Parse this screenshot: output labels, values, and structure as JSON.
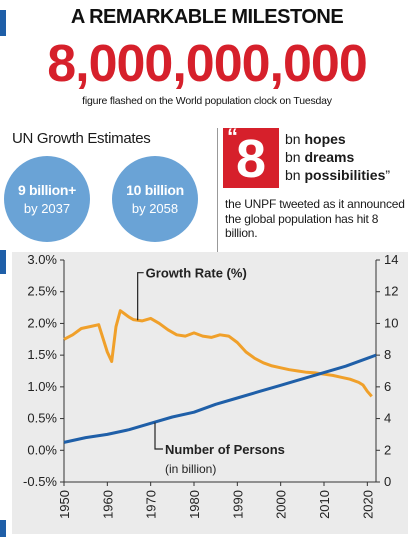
{
  "header": {
    "headline": "A REMARKABLE MILESTONE",
    "big_number": "8,000,000,000",
    "caption": "figure flashed on the World population clock on Tuesday"
  },
  "estimates": {
    "title": "UN Growth Estimates",
    "bubbles": [
      {
        "value": "9 billion+",
        "year": "by 2037"
      },
      {
        "value": "10 billion",
        "year": "by 2058"
      }
    ]
  },
  "tweet": {
    "open_quote": "“",
    "number": "8",
    "lines": [
      {
        "prefix": "bn ",
        "bold": "hopes",
        "suffix": ""
      },
      {
        "prefix": "bn ",
        "bold": "dreams",
        "suffix": ""
      },
      {
        "prefix": "bn ",
        "bold": "possibilities",
        "suffix": "”"
      }
    ],
    "body": "the UNPF tweeted as it announced the global population has hit 8 billion."
  },
  "colors": {
    "accent_red": "#d6202b",
    "bubble_blue": "#6aa3d6",
    "growth_line": "#f0a02a",
    "persons_line": "#1f5fa8",
    "chart_bg": "#ebebeb"
  },
  "chart_data": {
    "type": "line",
    "title": "",
    "xlabel": "",
    "x_ticks": [
      1950,
      1960,
      1970,
      1980,
      1990,
      2000,
      2010,
      2020
    ],
    "xlim": [
      1950,
      2022
    ],
    "y_left": {
      "ylim": [
        -0.5,
        3.0
      ],
      "ticks": [
        "3.0%",
        "2.5%",
        "2.0%",
        "1.5%",
        "1.0%",
        "0.5%",
        "0.0%",
        "-0.5%"
      ]
    },
    "y_right": {
      "ylim": [
        0,
        14
      ],
      "ticks": [
        "14",
        "12",
        "10",
        "8",
        "6",
        "4",
        "2",
        "0"
      ]
    },
    "grid": false,
    "annotations": {
      "growth": "Growth Rate (%)",
      "persons": "Number of Persons",
      "persons_unit": "(in billion)"
    },
    "series": [
      {
        "name": "Growth Rate (%)",
        "axis": "left",
        "x": [
          1950,
          1952,
          1954,
          1956,
          1958,
          1960,
          1961,
          1962,
          1963,
          1964,
          1965,
          1966,
          1968,
          1970,
          1972,
          1974,
          1976,
          1978,
          1980,
          1982,
          1984,
          1986,
          1988,
          1990,
          1992,
          1994,
          1996,
          1998,
          2000,
          2002,
          2004,
          2006,
          2008,
          2010,
          2012,
          2014,
          2016,
          2018,
          2019,
          2020,
          2021
        ],
        "y": [
          1.75,
          1.82,
          1.92,
          1.95,
          1.98,
          1.55,
          1.4,
          1.95,
          2.2,
          2.15,
          2.1,
          2.06,
          2.04,
          2.08,
          2.0,
          1.9,
          1.82,
          1.8,
          1.85,
          1.8,
          1.78,
          1.82,
          1.8,
          1.7,
          1.55,
          1.45,
          1.38,
          1.33,
          1.3,
          1.27,
          1.25,
          1.23,
          1.22,
          1.2,
          1.18,
          1.15,
          1.12,
          1.07,
          1.03,
          0.93,
          0.85
        ]
      },
      {
        "name": "Number of Persons",
        "axis": "right",
        "x": [
          1950,
          1955,
          1960,
          1965,
          1970,
          1975,
          1980,
          1985,
          1990,
          1995,
          2000,
          2005,
          2010,
          2015,
          2020,
          2022
        ],
        "y": [
          2.5,
          2.8,
          3.0,
          3.3,
          3.7,
          4.1,
          4.4,
          4.9,
          5.3,
          5.7,
          6.1,
          6.5,
          6.9,
          7.3,
          7.8,
          8.0
        ]
      }
    ]
  }
}
